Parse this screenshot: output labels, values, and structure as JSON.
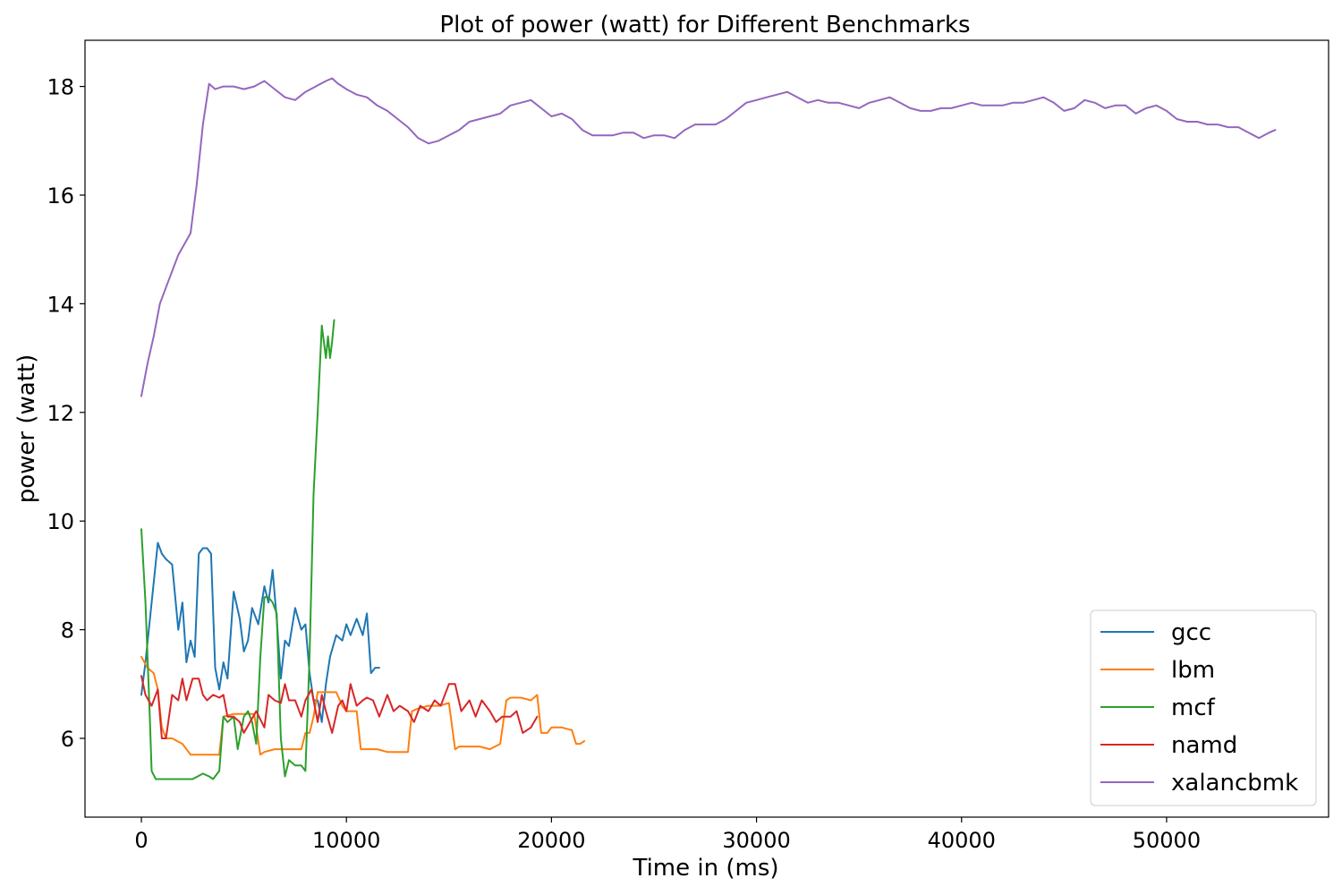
{
  "chart_data": {
    "type": "line",
    "title": "Plot of power (watt) for Different Benchmarks",
    "xlabel": "Time in (ms)",
    "ylabel": "power (watt)",
    "xlim": [
      -2750,
      57900
    ],
    "ylim": [
      4.55,
      18.85
    ],
    "xticks": [
      0,
      10000,
      20000,
      30000,
      40000,
      50000
    ],
    "yticks": [
      6,
      8,
      10,
      12,
      14,
      16,
      18
    ],
    "legend_position": "lower right",
    "grid": false,
    "series": [
      {
        "name": "gcc",
        "color": "#1f77b4",
        "x": [
          0,
          200,
          500,
          800,
          1000,
          1200,
          1500,
          1800,
          2000,
          2200,
          2400,
          2600,
          2800,
          3000,
          3200,
          3400,
          3600,
          3800,
          4000,
          4200,
          4500,
          4800,
          5000,
          5200,
          5400,
          5700,
          6000,
          6200,
          6400,
          6600,
          6800,
          7000,
          7200,
          7500,
          7800,
          8000,
          8200,
          8400,
          8600,
          8800,
          9000,
          9200,
          9500,
          9800,
          10000,
          10200,
          10500,
          10800,
          11000,
          11200,
          11400,
          11600
        ],
        "y": [
          6.8,
          7.4,
          8.5,
          9.6,
          9.4,
          9.3,
          9.2,
          8.0,
          8.5,
          7.4,
          7.8,
          7.5,
          9.4,
          9.5,
          9.5,
          9.4,
          7.3,
          6.9,
          7.4,
          7.1,
          8.7,
          8.2,
          7.6,
          7.8,
          8.4,
          8.1,
          8.8,
          8.5,
          9.1,
          8.2,
          7.1,
          7.8,
          7.7,
          8.4,
          8.0,
          8.1,
          7.2,
          6.7,
          6.7,
          6.3,
          7.0,
          7.5,
          7.9,
          7.8,
          8.1,
          7.9,
          8.2,
          7.9,
          8.3,
          7.2,
          7.3,
          7.3
        ]
      },
      {
        "name": "lbm",
        "color": "#ff7f0e",
        "x": [
          0,
          300,
          600,
          800,
          1000,
          1200,
          1500,
          2000,
          2400,
          2600,
          3000,
          3500,
          3800,
          4000,
          4500,
          5000,
          5500,
          5800,
          6000,
          6500,
          7000,
          7500,
          7800,
          8000,
          8200,
          8400,
          8600,
          9000,
          9500,
          9800,
          10000,
          10500,
          10700,
          11000,
          11500,
          12000,
          12500,
          13000,
          13200,
          13500,
          14000,
          14500,
          15000,
          15300,
          15500,
          16000,
          16500,
          17000,
          17500,
          17800,
          18000,
          18500,
          19000,
          19300,
          19500,
          19800,
          20000,
          20500,
          21000,
          21200,
          21400,
          21600
        ],
        "y": [
          7.5,
          7.3,
          7.2,
          6.9,
          6.2,
          6.0,
          6.0,
          5.9,
          5.7,
          5.7,
          5.7,
          5.7,
          5.7,
          6.4,
          6.45,
          6.45,
          6.45,
          5.7,
          5.75,
          5.8,
          5.8,
          5.8,
          5.8,
          6.1,
          6.1,
          6.4,
          6.85,
          6.85,
          6.85,
          6.6,
          6.5,
          6.5,
          5.8,
          5.8,
          5.8,
          5.75,
          5.75,
          5.75,
          6.5,
          6.55,
          6.6,
          6.6,
          6.65,
          5.8,
          5.85,
          5.85,
          5.85,
          5.8,
          5.9,
          6.7,
          6.75,
          6.75,
          6.7,
          6.8,
          6.1,
          6.1,
          6.2,
          6.2,
          6.15,
          5.9,
          5.9,
          5.95
        ]
      },
      {
        "name": "mcf",
        "color": "#2ca02c",
        "x": [
          0,
          200,
          400,
          500,
          700,
          1000,
          1500,
          2000,
          2500,
          3000,
          3300,
          3500,
          3800,
          4000,
          4200,
          4500,
          4700,
          5000,
          5200,
          5400,
          5600,
          5800,
          6000,
          6200,
          6400,
          6600,
          6800,
          7000,
          7200,
          7500,
          7800,
          8000,
          8200,
          8400,
          8600,
          8800,
          9000,
          9100,
          9200,
          9300,
          9400
        ],
        "y": [
          9.85,
          8.5,
          6.5,
          5.4,
          5.25,
          5.25,
          5.25,
          5.25,
          5.25,
          5.35,
          5.3,
          5.25,
          5.4,
          6.4,
          6.3,
          6.4,
          5.8,
          6.4,
          6.5,
          6.3,
          5.9,
          7.5,
          8.6,
          8.6,
          8.5,
          8.3,
          6.0,
          5.3,
          5.6,
          5.5,
          5.5,
          5.4,
          7.5,
          10.5,
          12.0,
          13.6,
          13.0,
          13.4,
          13.0,
          13.3,
          13.7
        ]
      },
      {
        "name": "namd",
        "color": "#d62728",
        "x": [
          0,
          200,
          500,
          800,
          1000,
          1200,
          1500,
          1800,
          2000,
          2200,
          2500,
          2800,
          3000,
          3200,
          3500,
          3800,
          4000,
          4200,
          4500,
          4800,
          5000,
          5300,
          5600,
          6000,
          6200,
          6500,
          6800,
          7000,
          7200,
          7500,
          7800,
          8000,
          8300,
          8600,
          8800,
          9000,
          9300,
          9600,
          9800,
          10000,
          10200,
          10500,
          10800,
          11000,
          11300,
          11600,
          12000,
          12300,
          12600,
          13000,
          13300,
          13600,
          14000,
          14300,
          14600,
          15000,
          15300,
          15600,
          16000,
          16300,
          16600,
          17000,
          17300,
          17600,
          18000,
          18300,
          18600,
          19000,
          19300
        ],
        "y": [
          7.15,
          6.8,
          6.6,
          6.9,
          6.0,
          6.0,
          6.8,
          6.7,
          7.1,
          6.7,
          7.1,
          7.1,
          6.8,
          6.7,
          6.8,
          6.75,
          6.8,
          6.4,
          6.4,
          6.3,
          6.1,
          6.3,
          6.5,
          6.2,
          6.8,
          6.7,
          6.65,
          7.0,
          6.7,
          6.7,
          6.4,
          6.7,
          6.9,
          6.3,
          6.8,
          6.5,
          6.1,
          6.6,
          6.7,
          6.5,
          7.0,
          6.6,
          6.7,
          6.75,
          6.7,
          6.4,
          6.8,
          6.5,
          6.6,
          6.5,
          6.3,
          6.6,
          6.5,
          6.7,
          6.6,
          7.0,
          7.0,
          6.5,
          6.7,
          6.4,
          6.7,
          6.5,
          6.3,
          6.4,
          6.4,
          6.5,
          6.1,
          6.2,
          6.4
        ]
      },
      {
        "name": "xalancbmk",
        "color": "#9467bd",
        "x": [
          0,
          300,
          600,
          900,
          1200,
          1500,
          1800,
          2100,
          2400,
          2700,
          3000,
          3300,
          3600,
          4000,
          4500,
          5000,
          5500,
          6000,
          6500,
          7000,
          7500,
          8000,
          8500,
          9000,
          9300,
          9600,
          10000,
          10500,
          11000,
          11500,
          12000,
          12500,
          13000,
          13500,
          14000,
          14500,
          15000,
          15500,
          16000,
          16500,
          17000,
          17500,
          18000,
          18500,
          19000,
          19500,
          20000,
          20500,
          21000,
          21500,
          22000,
          22500,
          23000,
          23500,
          24000,
          24500,
          25000,
          25500,
          26000,
          26500,
          27000,
          27500,
          28000,
          28500,
          29000,
          29500,
          30000,
          30500,
          31000,
          31500,
          32000,
          32500,
          33000,
          33500,
          34000,
          34500,
          35000,
          35500,
          36000,
          36500,
          37000,
          37500,
          38000,
          38500,
          39000,
          39500,
          40000,
          40500,
          41000,
          41500,
          42000,
          42500,
          43000,
          43500,
          44000,
          44500,
          45000,
          45500,
          46000,
          46500,
          47000,
          47500,
          48000,
          48500,
          49000,
          49500,
          50000,
          50500,
          51000,
          51500,
          52000,
          52500,
          53000,
          53500,
          54000,
          54500,
          55000,
          55300
        ],
        "y": [
          12.3,
          12.9,
          13.4,
          14.0,
          14.3,
          14.6,
          14.9,
          15.1,
          15.3,
          16.2,
          17.3,
          18.05,
          17.95,
          18.0,
          18.0,
          17.95,
          18.0,
          18.1,
          17.95,
          17.8,
          17.75,
          17.9,
          18.0,
          18.1,
          18.15,
          18.05,
          17.95,
          17.85,
          17.8,
          17.65,
          17.55,
          17.4,
          17.25,
          17.05,
          16.95,
          17.0,
          17.1,
          17.2,
          17.35,
          17.4,
          17.45,
          17.5,
          17.65,
          17.7,
          17.75,
          17.6,
          17.45,
          17.5,
          17.4,
          17.2,
          17.1,
          17.1,
          17.1,
          17.15,
          17.15,
          17.05,
          17.1,
          17.1,
          17.05,
          17.2,
          17.3,
          17.3,
          17.3,
          17.4,
          17.55,
          17.7,
          17.75,
          17.8,
          17.85,
          17.9,
          17.8,
          17.7,
          17.75,
          17.7,
          17.7,
          17.65,
          17.6,
          17.7,
          17.75,
          17.8,
          17.7,
          17.6,
          17.55,
          17.55,
          17.6,
          17.6,
          17.65,
          17.7,
          17.65,
          17.65,
          17.65,
          17.7,
          17.7,
          17.75,
          17.8,
          17.7,
          17.55,
          17.6,
          17.75,
          17.7,
          17.6,
          17.65,
          17.65,
          17.5,
          17.6,
          17.65,
          17.55,
          17.4,
          17.35,
          17.35,
          17.3,
          17.3,
          17.25,
          17.25,
          17.15,
          17.05,
          17.15,
          17.2
        ]
      }
    ]
  }
}
